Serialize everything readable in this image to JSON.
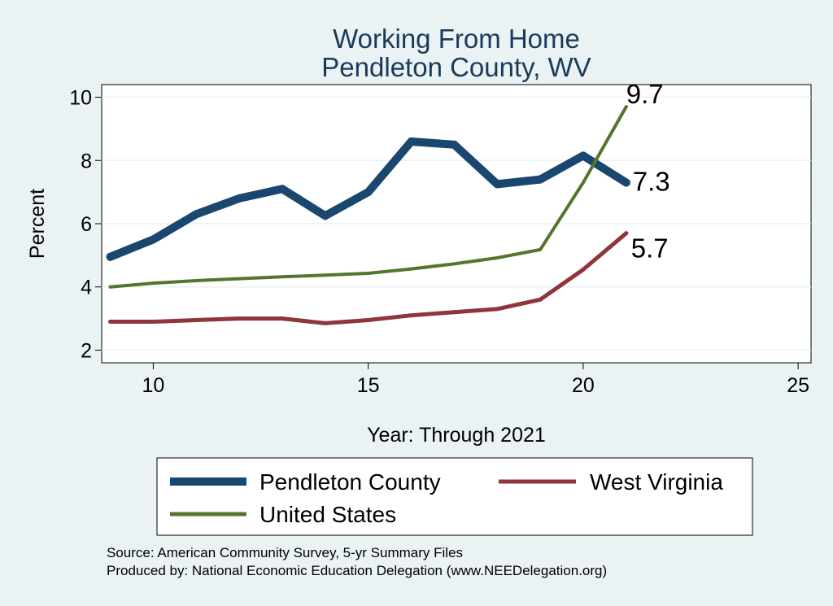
{
  "chart_data": {
    "type": "line",
    "title": [
      "Working From Home",
      "Pendleton County, WV"
    ],
    "xlabel": "Year: Through 2021",
    "ylabel": "Percent",
    "xlim": [
      8.8,
      25.3
    ],
    "ylim": [
      1.6,
      10.4
    ],
    "xticks": [
      10,
      15,
      20,
      25
    ],
    "yticks": [
      2,
      4,
      6,
      8,
      10
    ],
    "grid": true,
    "legend_position": "bottom",
    "series": [
      {
        "name": "Pendleton County",
        "color": "#1a476f",
        "x": [
          9,
          10,
          11,
          12,
          13,
          14,
          15,
          16,
          17,
          18,
          19,
          20,
          21
        ],
        "values": [
          4.95,
          5.5,
          6.3,
          6.8,
          7.1,
          6.25,
          7.0,
          8.6,
          8.5,
          7.25,
          7.4,
          8.15,
          7.3
        ],
        "end_label": "7.3"
      },
      {
        "name": "West Virginia",
        "color": "#90353b",
        "x": [
          9,
          10,
          11,
          12,
          13,
          14,
          15,
          16,
          17,
          18,
          19,
          20,
          21
        ],
        "values": [
          2.9,
          2.9,
          2.95,
          3.0,
          3.0,
          2.85,
          2.95,
          3.1,
          3.2,
          3.3,
          3.6,
          4.55,
          5.7
        ],
        "end_label": "5.7"
      },
      {
        "name": "United States",
        "color": "#55752f",
        "x": [
          9,
          10,
          11,
          12,
          13,
          14,
          15,
          16,
          17,
          18,
          19,
          20,
          21
        ],
        "values": [
          4.0,
          4.12,
          4.2,
          4.26,
          4.32,
          4.37,
          4.43,
          4.57,
          4.73,
          4.92,
          5.18,
          7.3,
          9.7
        ],
        "end_label": "9.7"
      }
    ]
  },
  "source": "Source: American Community Survey, 5-yr Summary Files",
  "produced_by": "Produced by: National Economic Education Delegation (www.NEEDelegation.org)"
}
